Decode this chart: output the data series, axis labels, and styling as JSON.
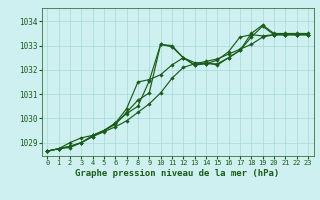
{
  "bg_color": "#cff0f0",
  "grid_color": "#a8d8d8",
  "line_color": "#1a5c1a",
  "title": "Graphe pression niveau de la mer (hPa)",
  "xlim": [
    -0.5,
    23.5
  ],
  "ylim": [
    1028.45,
    1034.55
  ],
  "yticks": [
    1029,
    1030,
    1031,
    1032,
    1033,
    1034
  ],
  "series": [
    [
      1028.65,
      1028.75,
      1028.8,
      1029.0,
      1029.25,
      1029.45,
      1029.65,
      1029.9,
      1030.25,
      1030.6,
      1031.05,
      1031.65,
      1032.1,
      1032.25,
      1032.35,
      1032.45,
      1032.65,
      1032.85,
      1033.05,
      1033.35,
      1033.45,
      1033.45,
      1033.45,
      1033.45
    ],
    [
      1028.65,
      1028.75,
      1028.85,
      1029.0,
      1029.25,
      1029.5,
      1029.75,
      1030.25,
      1030.75,
      1031.05,
      1033.05,
      1033.0,
      1032.5,
      1032.2,
      1032.25,
      1032.25,
      1032.5,
      1032.8,
      1033.35,
      1033.8,
      1033.45,
      1033.45,
      1033.45,
      1033.45
    ],
    [
      1028.65,
      1028.75,
      1029.0,
      1029.2,
      1029.3,
      1029.5,
      1029.8,
      1030.2,
      1030.5,
      1031.55,
      1033.05,
      1032.95,
      1032.5,
      1032.3,
      1032.25,
      1032.4,
      1032.75,
      1033.35,
      1033.45,
      1033.4,
      1033.45,
      1033.45,
      1033.45,
      1033.45
    ],
    [
      1028.65,
      1028.75,
      1028.85,
      1029.0,
      1029.3,
      1029.5,
      1029.8,
      1030.4,
      1031.5,
      1031.6,
      1031.8,
      1032.2,
      1032.5,
      1032.2,
      1032.3,
      1032.2,
      1032.5,
      1032.8,
      1033.5,
      1033.85,
      1033.5,
      1033.5,
      1033.5,
      1033.5
    ]
  ],
  "xtick_labels": [
    "0",
    "1",
    "2",
    "3",
    "4",
    "5",
    "6",
    "7",
    "8",
    "9",
    "10",
    "11",
    "12",
    "13",
    "14",
    "15",
    "16",
    "17",
    "18",
    "19",
    "20",
    "21",
    "22",
    "23"
  ],
  "ytick_fontsize": 5.5,
  "xtick_fontsize": 5.0,
  "title_fontsize": 6.5,
  "marker_size": 2.2,
  "line_width": 0.85
}
